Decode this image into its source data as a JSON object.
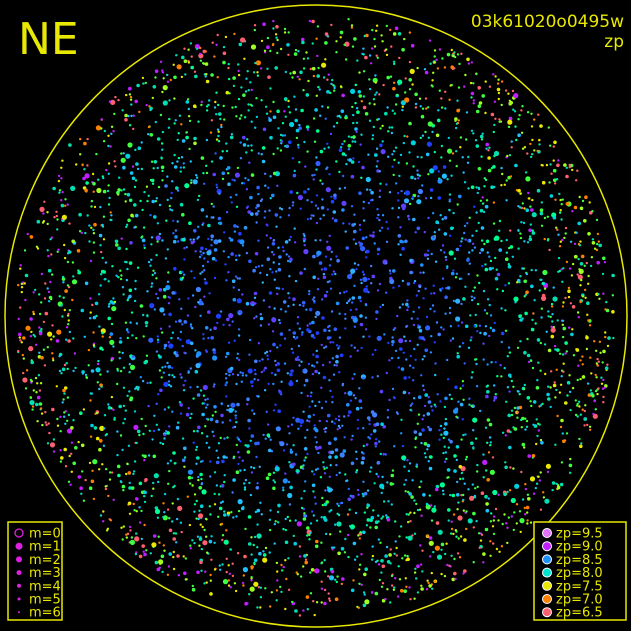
{
  "corner_label": "NE",
  "header": {
    "title": "03k61020o0495w",
    "subtitle": "zp"
  },
  "magnitude_legend": [
    "m=0",
    "m=1",
    "m=2",
    "m=3",
    "m=4",
    "m=5",
    "m=6"
  ],
  "magnitude_color": "#e020e0",
  "zp_legend": [
    {
      "label": "zp=9.5",
      "color": "#e070ff"
    },
    {
      "label": "zp=9.0",
      "color": "#c020ff"
    },
    {
      "label": "zp=8.5",
      "color": "#2090ff"
    },
    {
      "label": "zp=8.0",
      "color": "#00e0d0"
    },
    {
      "label": "zp=7.5",
      "color": "#e8e800"
    },
    {
      "label": "zp=7.0",
      "color": "#ff8000"
    },
    {
      "label": "zp=6.5",
      "color": "#ff6070"
    }
  ]
}
